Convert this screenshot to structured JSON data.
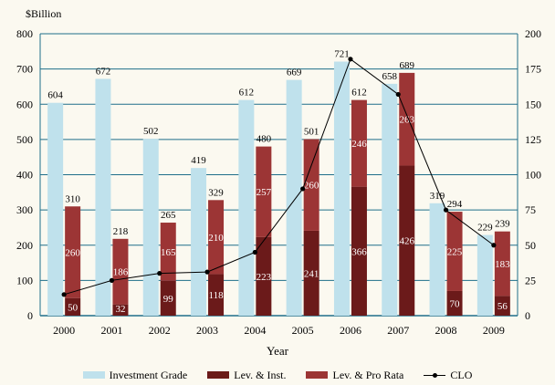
{
  "chart_data": {
    "type": "bar",
    "categories": [
      "2000",
      "2001",
      "2002",
      "2003",
      "2004",
      "2005",
      "2006",
      "2007",
      "2008",
      "2009"
    ],
    "ylabel": "$Billion",
    "xlabel": "Year",
    "ylim": [
      0,
      800
    ],
    "y2lim": [
      0,
      200
    ],
    "y_ticks": [
      "0",
      "100",
      "200",
      "300",
      "400",
      "500",
      "600",
      "700",
      "800"
    ],
    "y2_ticks": [
      "0",
      "25",
      "50",
      "75",
      "100",
      "125",
      "150",
      "175",
      "200"
    ],
    "grid": true,
    "legend_position": "bottom",
    "series": [
      {
        "name": "Investment Grade",
        "kind": "bar",
        "values": [
          604,
          672,
          502,
          419,
          612,
          669,
          721,
          658,
          319,
          229
        ],
        "color": "#bfe1ec"
      },
      {
        "name": "Lev. & Inst.",
        "kind": "stacked-bar",
        "values": [
          50,
          32,
          99,
          118,
          223,
          241,
          366,
          426,
          70,
          56
        ],
        "color": "#6b1a1a"
      },
      {
        "name": "Lev. & Pro Rata",
        "kind": "stacked-bar",
        "values": [
          260,
          186,
          165,
          210,
          257,
          260,
          246,
          263,
          225,
          183
        ],
        "color": "#9c3535"
      },
      {
        "name": "CLO",
        "kind": "line",
        "axis": "right",
        "values": [
          15,
          25,
          30,
          31,
          45,
          90,
          182,
          157,
          75,
          50
        ],
        "color": "#000000"
      }
    ],
    "leveraged_totals": [
      310,
      218,
      265,
      329,
      480,
      501,
      612,
      689,
      294,
      239
    ]
  }
}
